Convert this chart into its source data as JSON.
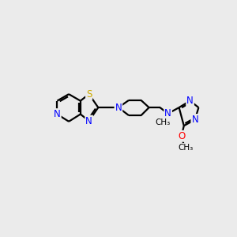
{
  "background_color": "#ebebeb",
  "atom_colors": {
    "N": "#0000ff",
    "S": "#ccaa00",
    "O": "#ff0000"
  },
  "bond_color": "#000000",
  "bond_width": 1.6,
  "figsize": [
    3.0,
    3.0
  ],
  "dpi": 100,
  "bg": "#ebebeb"
}
